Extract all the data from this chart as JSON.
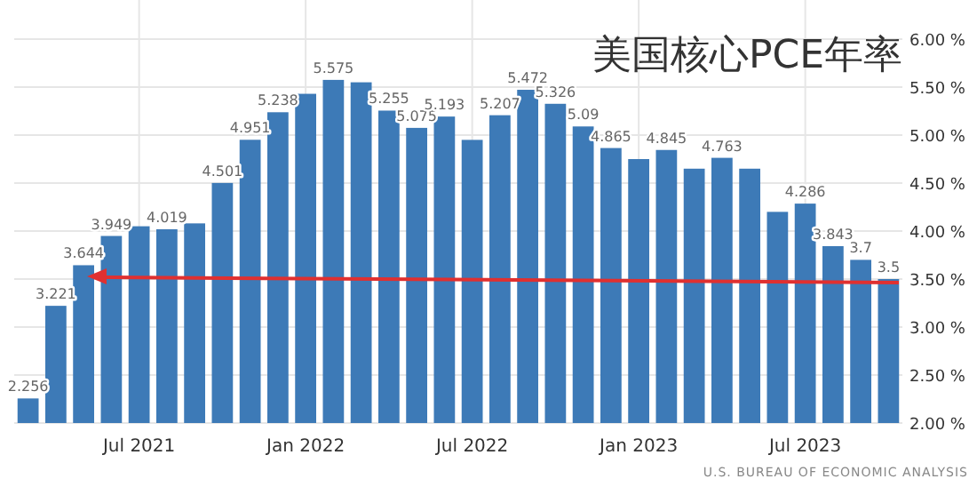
{
  "chart_data": {
    "type": "bar",
    "title": "美国核心PCE年率",
    "categories": [
      null,
      null,
      null,
      null,
      "Jul 2021",
      null,
      null,
      null,
      null,
      null,
      "Jan 2022",
      null,
      null,
      null,
      null,
      null,
      "Jul 2022",
      null,
      null,
      null,
      null,
      null,
      "Jan 2023",
      null,
      null,
      null,
      null,
      null,
      "Jul 2023",
      null,
      null,
      null
    ],
    "values": [
      2.256,
      3.221,
      3.644,
      3.949,
      4.05,
      4.019,
      4.08,
      4.501,
      4.951,
      5.238,
      5.43,
      5.575,
      5.55,
      5.255,
      5.075,
      5.193,
      4.95,
      5.207,
      5.472,
      5.326,
      5.09,
      4.865,
      4.75,
      4.845,
      4.65,
      4.763,
      4.65,
      4.2,
      4.286,
      3.843,
      3.7,
      3.5
    ],
    "value_labels": [
      "2.256",
      "3.221",
      "3.644",
      "3.949",
      null,
      "4.019",
      null,
      "4.501",
      "4.951",
      "5.238",
      null,
      "5.575",
      null,
      "5.255",
      "5.075",
      "5.193",
      null,
      "5.207",
      "5.472",
      "5.326",
      "5.09",
      "4.865",
      null,
      "4.845",
      null,
      "4.763",
      null,
      null,
      "4.286",
      "3.843",
      "3.7",
      "3.5"
    ],
    "color": "#3d7ab7",
    "ylim": [
      2,
      6
    ],
    "yticks": [
      {
        "value": 2,
        "label": "2.00 %"
      },
      {
        "value": 2.5,
        "label": "2.50 %"
      },
      {
        "value": 3,
        "label": "3.00 %"
      },
      {
        "value": 3.5,
        "label": "3.50 %"
      },
      {
        "value": 4,
        "label": "4.00 %"
      },
      {
        "value": 4.5,
        "label": "4.50 %"
      },
      {
        "value": 5,
        "label": "5.00 %"
      },
      {
        "value": 5.5,
        "label": "5.50 %"
      },
      {
        "value": 6,
        "label": "6.00 %"
      }
    ],
    "grid": true,
    "annotations": [
      "U.S. BUREAU OF ECONOMIC ANALYSIS"
    ]
  }
}
